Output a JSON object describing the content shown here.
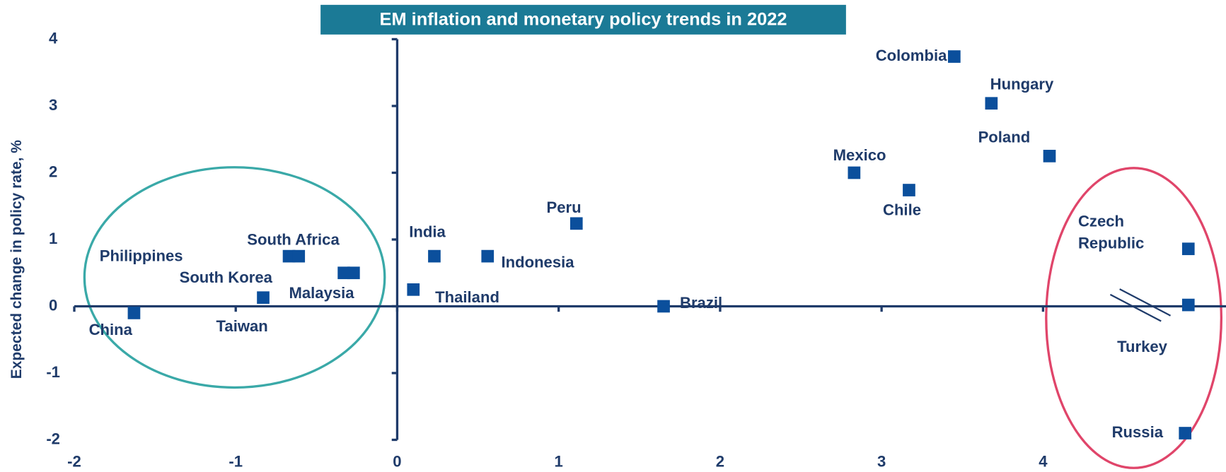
{
  "chart_data": {
    "type": "scatter",
    "title": "EM inflation and monetary policy trends in 2022",
    "y_label": "Expected change in policy rate, %",
    "labels": [
      "China",
      "Philippines",
      "South Korea",
      "Taiwan",
      "South Africa",
      "Malaysia",
      "Thailand",
      "India",
      "Indonesia",
      "Peru",
      "Brazil",
      "Mexico",
      "Chile",
      "Colombia",
      "Hungary",
      "Poland",
      "Czech Republic",
      "Turkey",
      "Russia"
    ],
    "x": [
      -1.63,
      -0.67,
      -0.33,
      -0.83,
      -0.61,
      -0.27,
      0.1,
      0.23,
      0.56,
      1.11,
      1.65,
      2.83,
      3.17,
      3.45,
      3.68,
      4.04,
      4.9,
      4.9,
      4.88
    ],
    "values": [
      -0.1,
      0.75,
      0.5,
      0.13,
      0.75,
      0.5,
      0.25,
      0.75,
      0.75,
      1.24,
      0,
      2.0,
      1.74,
      3.74,
      3.04,
      2.25,
      0.86,
      0.02,
      -1.9
    ],
    "color": "#0b4f9c",
    "xlim": [
      -2,
      5.0
    ],
    "ylim": [
      -2,
      4
    ],
    "xticks": [
      -2,
      -1,
      0,
      1,
      2,
      3,
      4
    ],
    "yticks": [
      -2,
      -1,
      0,
      1,
      2,
      3,
      4
    ]
  }
}
